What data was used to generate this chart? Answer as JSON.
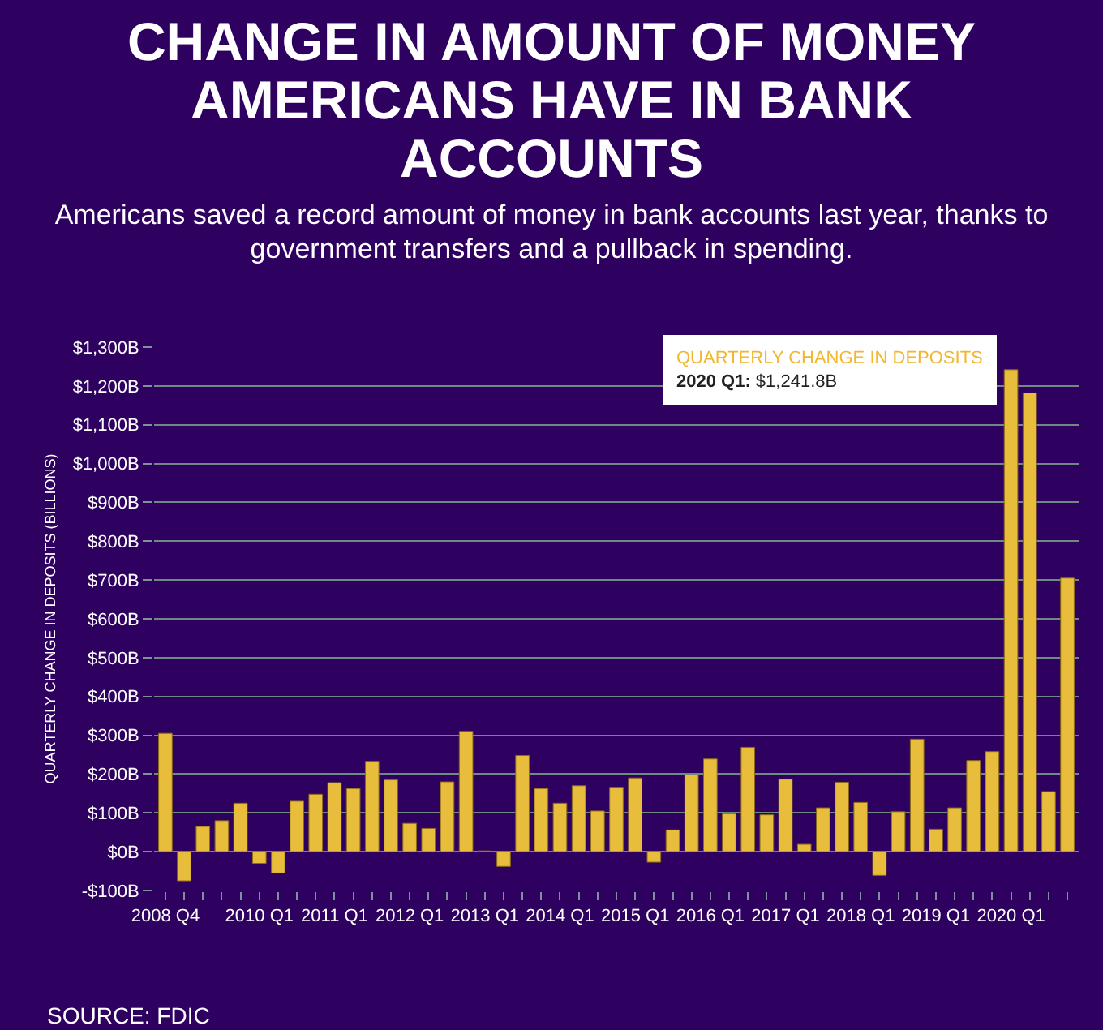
{
  "chart_data": {
    "type": "bar",
    "title": "CHANGE IN AMOUNT OF MONEY AMERICANS HAVE IN BANK ACCOUNTS",
    "subtitle": "Americans saved a record amount of money in bank accounts last year, thanks to government transfers and a pullback in spending.",
    "ylabel": "QUARTERLY CHANGE IN DEPOSITS (BILLIONS)",
    "categories": [
      "2008 Q4",
      null,
      null,
      null,
      null,
      "2010 Q1",
      null,
      null,
      null,
      "2011 Q1",
      null,
      null,
      null,
      "2012 Q1",
      null,
      null,
      null,
      "2013 Q1",
      null,
      null,
      null,
      "2014 Q1",
      null,
      null,
      null,
      "2015 Q1",
      null,
      null,
      null,
      "2016 Q1",
      null,
      null,
      null,
      "2017 Q1",
      null,
      null,
      null,
      "2018 Q1",
      null,
      null,
      null,
      "2019 Q1",
      null,
      null,
      null,
      "2020 Q1",
      null,
      null,
      null
    ],
    "values": [
      305,
      -75,
      65,
      80,
      125,
      -30,
      -55,
      130,
      148,
      178,
      163,
      233,
      185,
      73,
      60,
      180,
      310,
      2,
      -38,
      248,
      163,
      125,
      170,
      105,
      166,
      190,
      -27,
      56,
      198,
      239,
      98,
      269,
      95,
      187,
      19,
      113,
      179,
      127,
      -61,
      103,
      290,
      58,
      113,
      235,
      258,
      1241.8,
      1182,
      155,
      705
    ],
    "color": "#e8bd3b",
    "ylim": [
      -100,
      1300
    ],
    "yticks": [
      {
        "value": -100,
        "label": "-$100B"
      },
      {
        "value": 0,
        "label": "$0B"
      },
      {
        "value": 100,
        "label": "$100B"
      },
      {
        "value": 200,
        "label": "$200B"
      },
      {
        "value": 300,
        "label": "$300B"
      },
      {
        "value": 400,
        "label": "$400B"
      },
      {
        "value": 500,
        "label": "$500B"
      },
      {
        "value": 600,
        "label": "$600B"
      },
      {
        "value": 700,
        "label": "$700B"
      },
      {
        "value": 800,
        "label": "$800B"
      },
      {
        "value": 900,
        "label": "$900B"
      },
      {
        "value": 1000,
        "label": "$1,000B"
      },
      {
        "value": 1100,
        "label": "$1,100B"
      },
      {
        "value": 1200,
        "label": "$1,200B"
      },
      {
        "value": 1300,
        "label": "$1,300B"
      }
    ],
    "grid": "y",
    "annotations": [
      {
        "text": "QUARTERLY CHANGE IN DEPOSITS\n2020 Q1: $1,241.8B",
        "x": "2020 Q1",
        "y": 1241.8
      },
      "SOURCE: FDIC"
    ]
  }
}
